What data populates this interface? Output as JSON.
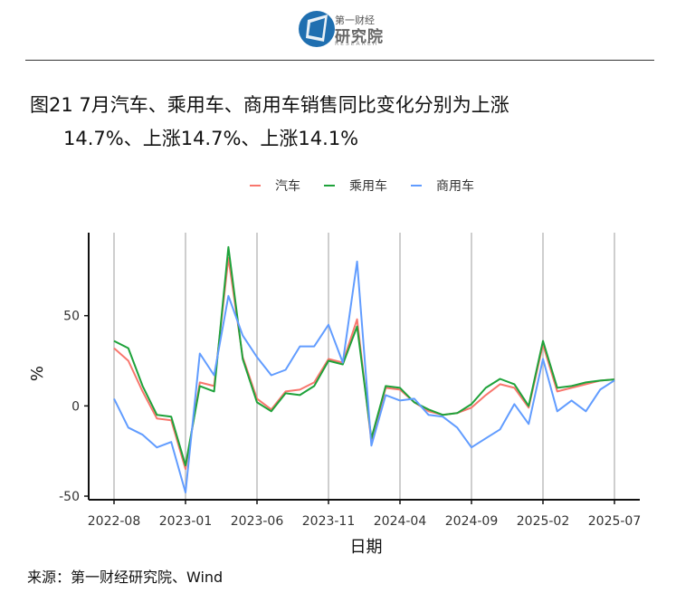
{
  "logo": {
    "top_text": "第一财经",
    "main_text": "研究院",
    "sub_text": "RESEARCH"
  },
  "title": {
    "line1": "图21 7月汽车、乘用车、商用车销售同比变化分别为上涨",
    "line2": "14.7%、上涨14.7%、上涨14.1%"
  },
  "source": "来源：第一财经研究院、Wind",
  "chart_data": {
    "type": "line",
    "xlabel": "日期",
    "ylabel": "%",
    "ylim": [
      -52,
      96
    ],
    "yticks": [
      -50,
      0,
      50
    ],
    "x_tick_labels": [
      "2022-08",
      "2023-01",
      "2023-06",
      "2023-11",
      "2024-04",
      "2024-09",
      "2025-02",
      "2025-07"
    ],
    "x_tick_indices": [
      0,
      5,
      10,
      15,
      20,
      25,
      30,
      35
    ],
    "legend_position": "top",
    "grid": "vertical",
    "x": [
      "2022-08",
      "2022-09",
      "2022-10",
      "2022-11",
      "2022-12",
      "2023-01",
      "2023-02",
      "2023-03",
      "2023-04",
      "2023-05",
      "2023-06",
      "2023-07",
      "2023-08",
      "2023-09",
      "2023-10",
      "2023-11",
      "2023-12",
      "2024-01",
      "2024-02",
      "2024-03",
      "2024-04",
      "2024-05",
      "2024-06",
      "2024-07",
      "2024-08",
      "2024-09",
      "2024-10",
      "2024-11",
      "2024-12",
      "2025-01",
      "2025-02",
      "2025-03",
      "2025-04",
      "2025-05",
      "2025-06",
      "2025-07"
    ],
    "series": [
      {
        "name": "汽车",
        "color": "#F8766D",
        "values": [
          32,
          25,
          8,
          -7,
          -8,
          -35,
          13,
          11,
          82,
          27,
          4,
          -2,
          8,
          9,
          13,
          26,
          24,
          48,
          -20,
          10,
          9,
          2,
          -3,
          -5,
          -4,
          -1,
          6,
          12,
          10,
          -1,
          34,
          8,
          10,
          12,
          14,
          14.7
        ]
      },
      {
        "name": "乘用车",
        "color": "#1EA23A",
        "values": [
          36,
          32,
          11,
          -5,
          -6,
          -33,
          11,
          8,
          88,
          26,
          2,
          -3,
          7,
          6,
          11,
          25,
          23,
          44,
          -18,
          11,
          10,
          2,
          -2,
          -5,
          -4,
          1,
          10,
          15,
          12,
          0,
          36,
          10,
          11,
          13,
          14,
          14.7
        ]
      },
      {
        "name": "商用车",
        "color": "#619CFF",
        "values": [
          4,
          -12,
          -16,
          -23,
          -20,
          -48,
          29,
          17,
          61,
          39,
          27,
          17,
          20,
          33,
          33,
          45,
          24,
          80,
          -22,
          6,
          3,
          4,
          -5,
          -6,
          -12,
          -23,
          -18,
          -13,
          1,
          -10,
          26,
          -3,
          3,
          -3,
          9,
          14.1
        ]
      }
    ]
  }
}
